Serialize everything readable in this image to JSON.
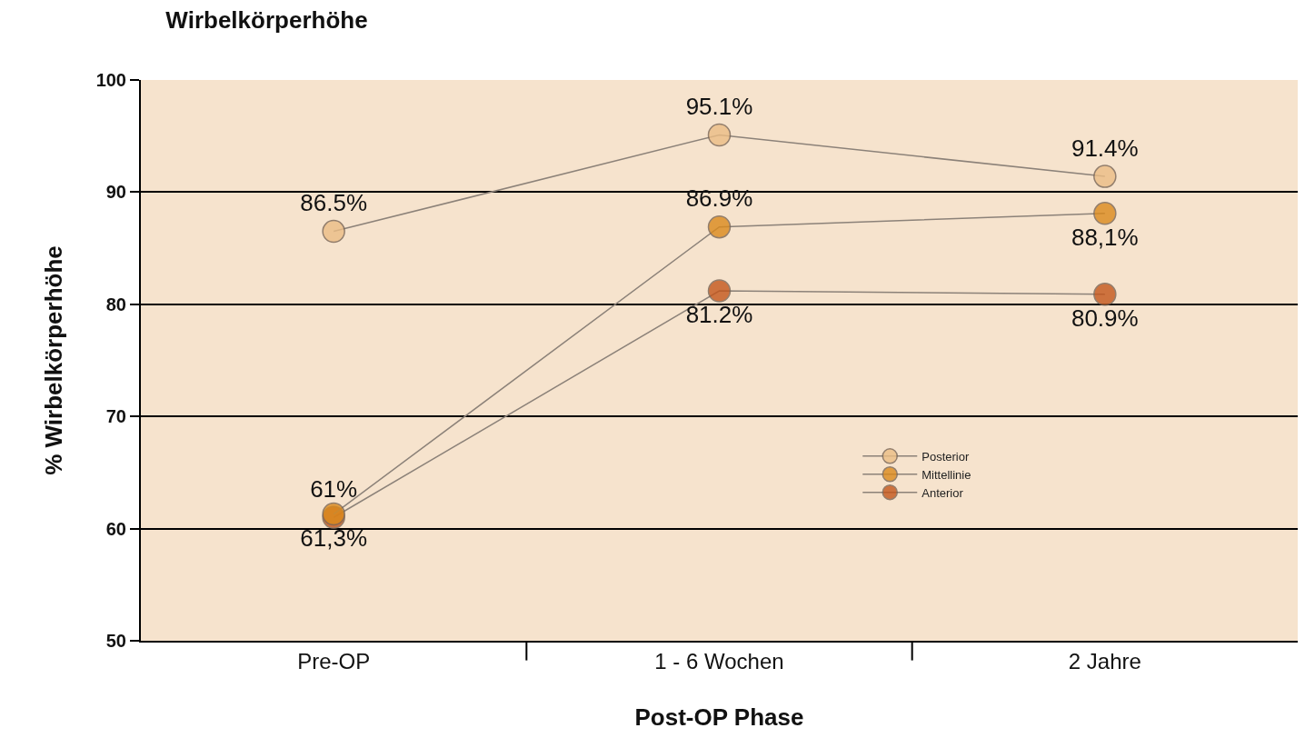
{
  "chart_data": {
    "type": "line",
    "title": "Wirbelkörperhöhe",
    "xlabel": "Post-OP Phase",
    "ylabel": "% Wirbelkörperhöhe",
    "categories": [
      "Pre-OP",
      "1 - 6 Wochen",
      "2 Jahre"
    ],
    "series": [
      {
        "name": "Posterior",
        "color": "#ecbd85",
        "values": [
          86.5,
          95.1,
          91.4
        ],
        "value_labels": [
          "86.5%",
          "95.1%",
          "91.4%"
        ]
      },
      {
        "name": "Mittellinie",
        "color": "#db8a1c",
        "values": [
          61.3,
          86.9,
          88.1
        ],
        "value_labels": [
          "61,3%",
          "86.9%",
          "88,1%"
        ]
      },
      {
        "name": "Anterior",
        "color": "#c4561b",
        "values": [
          61,
          81.2,
          80.9
        ],
        "value_labels": [
          "61%",
          "81.2%",
          "80.9%"
        ]
      }
    ],
    "ylim": [
      50,
      100
    ],
    "yticks": [
      50,
      60,
      70,
      80,
      90,
      100
    ],
    "grid": "y",
    "legend": "bottom right",
    "marker": "circle",
    "line_style": "solid"
  }
}
